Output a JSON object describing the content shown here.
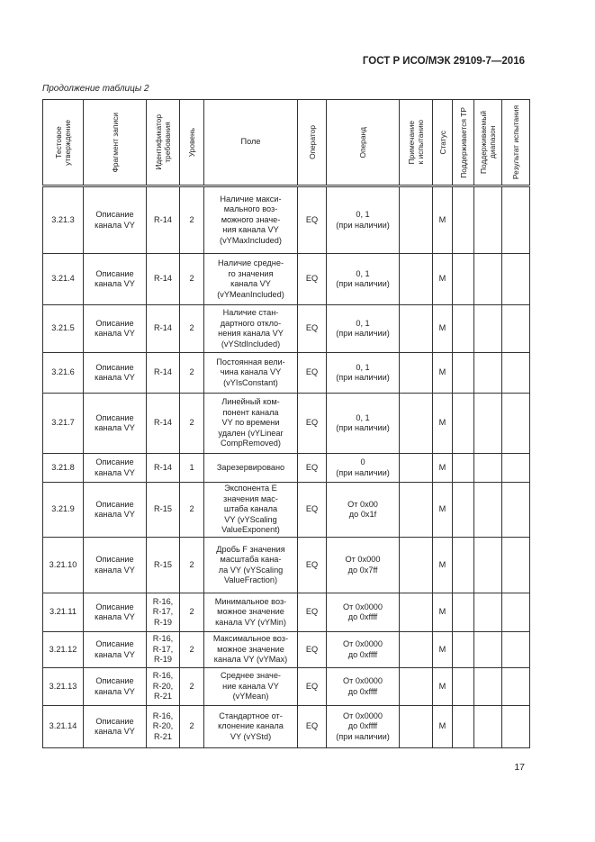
{
  "header": {
    "doc_title": "ГОСТ Р ИСО/МЭК 29109-7—2016",
    "caption": "Продолжение таблицы 2"
  },
  "table": {
    "columns": [
      "Тестовое\nутверждение",
      "Фрагмент записи",
      "Идентификатор\nтребования",
      "Уровень",
      "Поле",
      "Оператор",
      "Операнд",
      "Примечание\nк испытанию",
      "Статус",
      "Поддерживается ТР",
      "Поддерживаемый\nдиапазон",
      "Результат испытания"
    ],
    "rows": [
      [
        "3.21.3",
        "Описание\nканала VY",
        "R-14",
        "2",
        "Наличие макси-\nмального воз-\nможного значе-\nния канала VY\n(vYMaxIncluded)",
        "EQ",
        "0, 1\n(при наличии)",
        "",
        "M",
        "",
        "",
        ""
      ],
      [
        "3.21.4",
        "Описание\nканала VY",
        "R-14",
        "2",
        "Наличие средне-\nго значения\nканала VY\n(vYMeanIncluded)",
        "EQ",
        "0, 1\n(при наличии)",
        "",
        "M",
        "",
        "",
        ""
      ],
      [
        "3.21.5",
        "Описание\nканала VY",
        "R-14",
        "2",
        "Наличие стан-\nдартного откло-\nнения канала VY\n(vYStdIncluded)",
        "EQ",
        "0, 1\n(при наличии)",
        "",
        "M",
        "",
        "",
        ""
      ],
      [
        "3.21.6",
        "Описание\nканала VY",
        "R-14",
        "2",
        "Постоянная вели-\nчина канала VY\n(vYIsConstant)",
        "EQ",
        "0, 1\n(при наличии)",
        "",
        "M",
        "",
        "",
        ""
      ],
      [
        "3.21.7",
        "Описание\nканала VY",
        "R-14",
        "2",
        "Линейный ком-\nпонент канала\nVY по времени\nудален (vYLinear\nCompRemoved)",
        "EQ",
        "0, 1\n(при наличии)",
        "",
        "M",
        "",
        "",
        ""
      ],
      [
        "3.21.8",
        "Описание\nканала VY",
        "R-14",
        "1",
        "Зарезервировано",
        "EQ",
        "0\n(при наличии)",
        "",
        "M",
        "",
        "",
        ""
      ],
      [
        "3.21.9",
        "Описание\nканала VY",
        "R-15",
        "2",
        "Экспонента E\nзначения мас-\nштаба канала\nVY (vYScaling\nValueExponent)",
        "EQ",
        "От 0x00\nдо 0x1f",
        "",
        "M",
        "",
        "",
        ""
      ],
      [
        "3.21.10",
        "Описание\nканала VY",
        "R-15",
        "2",
        "Дробь F значения\nмасштаба кана-\nла VY (vYScaling\nValueFraction)",
        "EQ",
        "От 0x000\nдо 0x7ff",
        "",
        "M",
        "",
        "",
        ""
      ],
      [
        "3.21.11",
        "Описание\nканала VY",
        "R-16,\nR-17,\nR-19",
        "2",
        "Минимальное воз-\nможное значение\nканала VY (vYMin)",
        "EQ",
        "От 0x0000\nдо 0xffff",
        "",
        "M",
        "",
        "",
        ""
      ],
      [
        "3.21.12",
        "Описание\nканала VY",
        "R-16,\nR-17,\nR-19",
        "2",
        "Максимальное воз-\nможное значение\nканала VY (vYMax)",
        "EQ",
        "От 0x0000\nдо 0xffff",
        "",
        "M",
        "",
        "",
        ""
      ],
      [
        "3.21.13",
        "Описание\nканала VY",
        "R-16,\nR-20,\nR-21",
        "2",
        "Среднее значе-\nние канала VY\n(vYMean)",
        "EQ",
        "От 0x0000\nдо 0xffff",
        "",
        "M",
        "",
        "",
        ""
      ],
      [
        "3.21.14",
        "Описание\nканала VY",
        "R-16,\nR-20,\nR-21",
        "2",
        "Стандартное от-\nклонение канала\nVY (vYStd)",
        "EQ",
        "От 0x0000\nдо 0xffff\n(при наличии)",
        "",
        "M",
        "",
        "",
        ""
      ]
    ]
  },
  "footer": {
    "page_number": "17"
  }
}
